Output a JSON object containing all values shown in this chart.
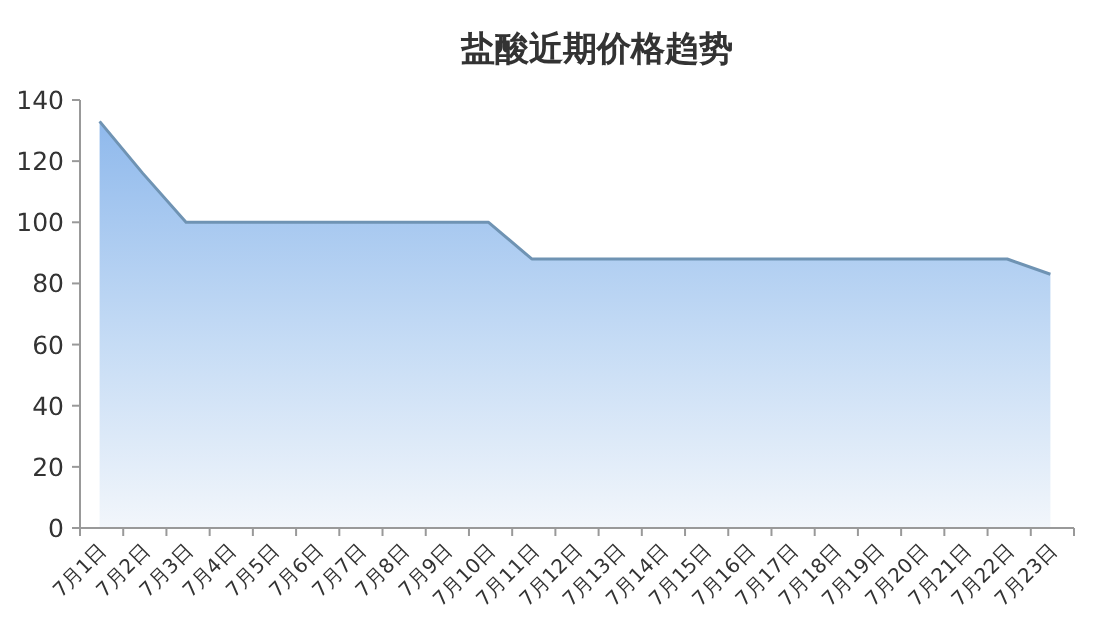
{
  "chart_data": {
    "type": "area",
    "title": "盐酸近期价格趋势",
    "categories": [
      "7月1日",
      "7月2日",
      "7月3日",
      "7月4日",
      "7月5日",
      "7月6日",
      "7月7日",
      "7月8日",
      "7月9日",
      "7月10日",
      "7月11日",
      "7月12日",
      "7月13日",
      "7月14日",
      "7月15日",
      "7月16日",
      "7月17日",
      "7月18日",
      "7月19日",
      "7月20日",
      "7月21日",
      "7月22日",
      "7月23日"
    ],
    "series": [
      {
        "color": "#6f93b3",
        "values": [
          133,
          116,
          100,
          100,
          100,
          100,
          100,
          100,
          100,
          100,
          88,
          88,
          88,
          88,
          88,
          88,
          88,
          88,
          88,
          88,
          88,
          88,
          83
        ]
      }
    ],
    "ylim": [
      0,
      140
    ],
    "yticks": [
      0,
      20,
      40,
      60,
      80,
      100,
      120,
      140
    ],
    "grid": false,
    "marker": "none",
    "line_style": "solid"
  }
}
